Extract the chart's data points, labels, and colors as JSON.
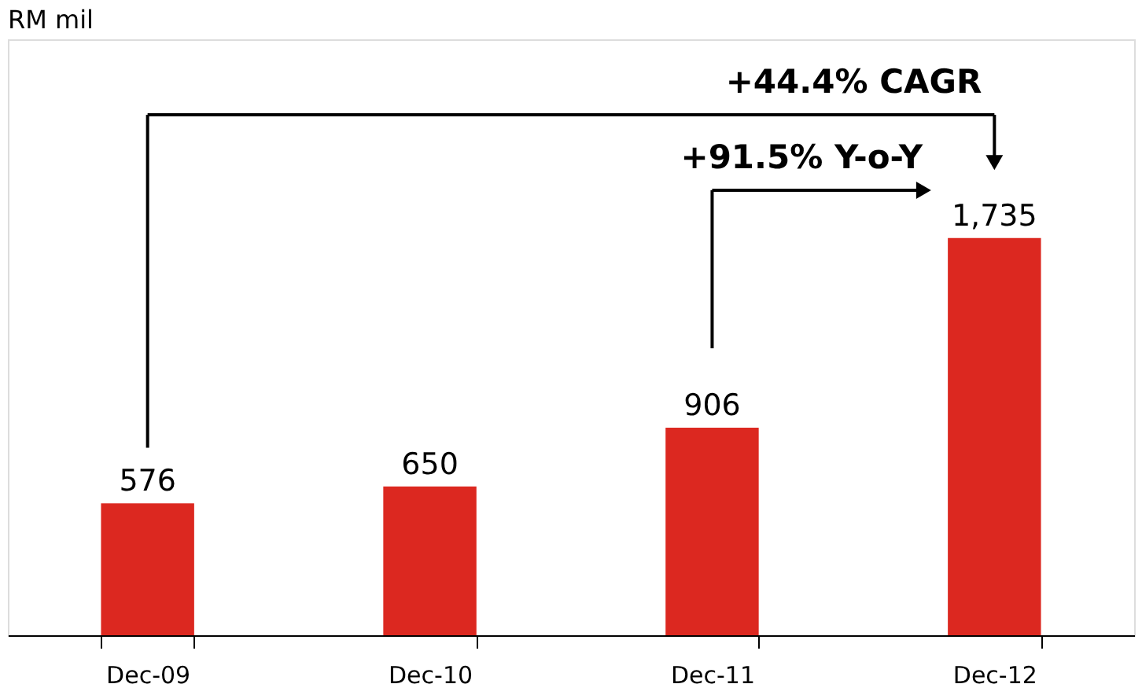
{
  "chart_data": {
    "type": "bar",
    "categories": [
      "Dec-09",
      "Dec-10",
      "Dec-11",
      "Dec-12"
    ],
    "values": [
      576,
      650,
      906,
      1735
    ],
    "color": "#dc2820",
    "value_labels": [
      "576",
      "650",
      "906",
      "1,735"
    ],
    "annotations": [
      "RM mil",
      "+44.4% CAGR",
      "+91.5% Y-o-Y"
    ]
  }
}
